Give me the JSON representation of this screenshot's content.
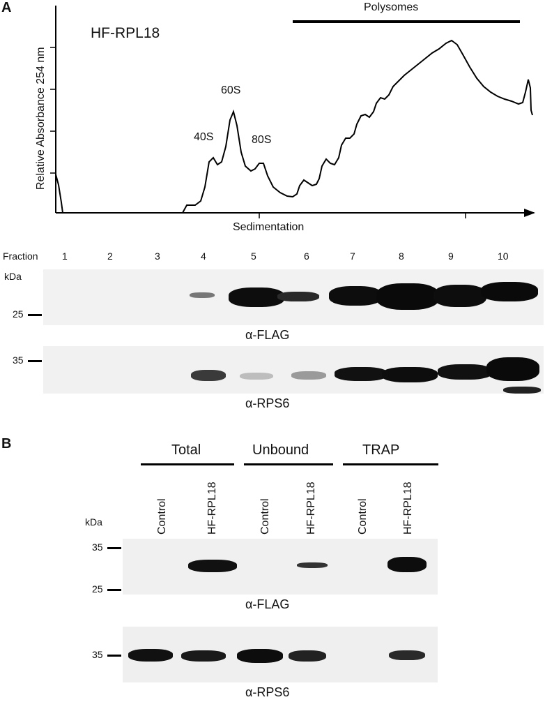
{
  "panel_a": {
    "letter": "A",
    "construct_label": "HF-RPL18",
    "y_axis_label": "Relative Absorbance 254 nm",
    "x_axis_label": "Sedimentation",
    "polysomes_label": "Polysomes",
    "peak_labels": [
      "40S",
      "60S",
      "80S"
    ],
    "fraction_header": "Fraction",
    "fractions": [
      "1",
      "2",
      "3",
      "4",
      "5",
      "6",
      "7",
      "8",
      "9",
      "10"
    ],
    "kda_label": "kDa",
    "blot1": {
      "marker": "25",
      "antibody": "α-FLAG"
    },
    "blot2": {
      "marker": "35",
      "antibody": "α-RPS6"
    }
  },
  "panel_b": {
    "letter": "B",
    "groups": [
      "Total",
      "Unbound",
      "TRAP"
    ],
    "lanes": [
      "Control",
      "HF-RPL18",
      "Control",
      "HF-RPL18",
      "Control",
      "HF-RPL18"
    ],
    "kda_label": "kDa",
    "blot1": {
      "markers": [
        "35",
        "25"
      ],
      "antibody": "α-FLAG"
    },
    "blot2": {
      "markers": [
        "35"
      ],
      "antibody": "α-RPS6"
    }
  }
}
